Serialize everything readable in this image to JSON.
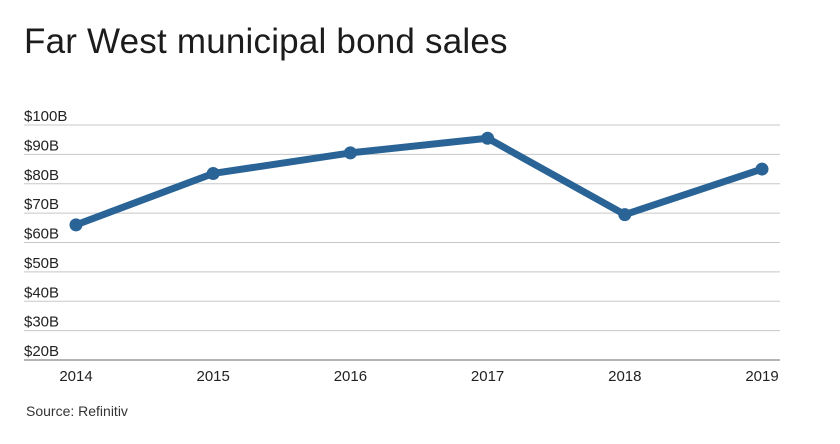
{
  "chart_data": {
    "type": "line",
    "title": "Far West municipal bond sales",
    "source": "Source: Refinitiv",
    "xlabel": "",
    "ylabel": "",
    "categories": [
      "2014",
      "2015",
      "2016",
      "2017",
      "2018",
      "2019"
    ],
    "series": [
      {
        "values": [
          66,
          83.5,
          90.5,
          95.5,
          69.5,
          85
        ],
        "color": "#2a6496"
      }
    ],
    "ylim": [
      20,
      100
    ],
    "yticks": [
      {
        "value": 100,
        "label": "$100B"
      },
      {
        "value": 90,
        "label": "$90B"
      },
      {
        "value": 80,
        "label": "$80B"
      },
      {
        "value": 70,
        "label": "$70B"
      },
      {
        "value": 60,
        "label": "$60B"
      },
      {
        "value": 50,
        "label": "$50B"
      },
      {
        "value": 40,
        "label": "$40B"
      },
      {
        "value": 30,
        "label": "$30B"
      },
      {
        "value": 20,
        "label": "$20B"
      }
    ],
    "grid": true,
    "legend": "none",
    "gridline_color": "#c8c8c8",
    "axis_color": "#888888"
  }
}
